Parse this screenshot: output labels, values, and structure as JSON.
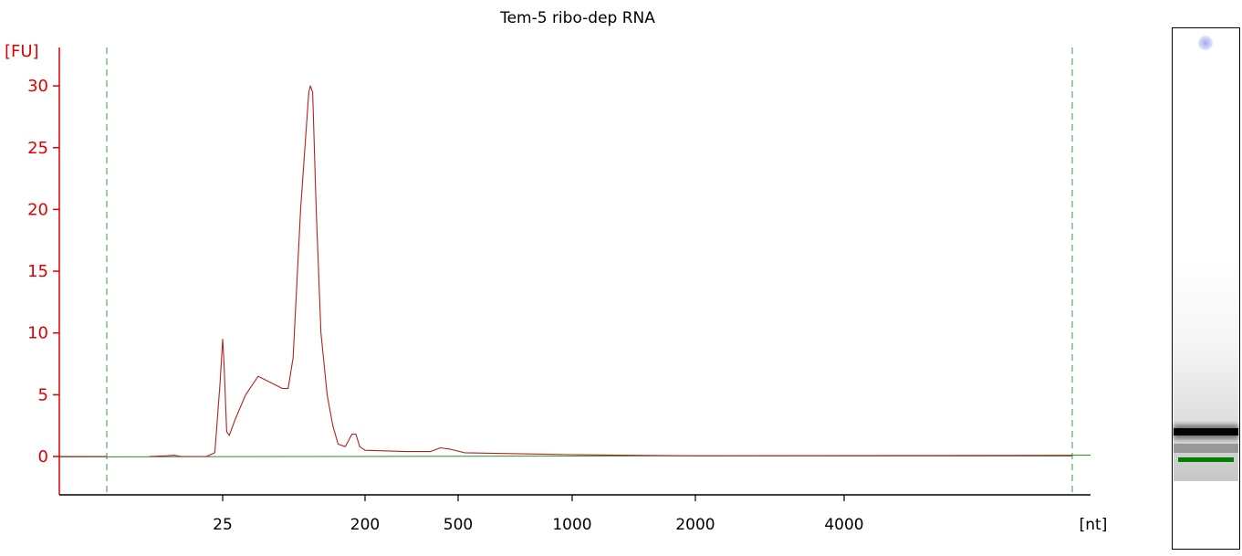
{
  "colors": {
    "trace": "#b22222",
    "baseline_trace": "#2e8b2e",
    "axis": "#e00000",
    "marker_lines": "#3a9a3a",
    "gel_marker": "#008000"
  },
  "chart_data": {
    "type": "line",
    "title": "Tem-5 ribo-dep RNA",
    "ylabel": "[FU]",
    "xlabel": "[nt]",
    "ylim": [
      -3,
      33
    ],
    "yticks": [
      0,
      5,
      10,
      15,
      20,
      25,
      30
    ],
    "xticks": [
      "25",
      "200",
      "500",
      "1000",
      "2000",
      "4000"
    ],
    "x_axis_note": "nonlinear size axis (nt), ticks labeled by size",
    "grid": false,
    "legend": "none",
    "markers": [
      "lower marker",
      "upper marker"
    ],
    "series": [
      {
        "values_by_size": [
          [
            14,
            0.0
          ],
          [
            16,
            0.05
          ],
          [
            17,
            0.1
          ],
          [
            18,
            0.0
          ],
          [
            22,
            0.0
          ],
          [
            23.5,
            0.3
          ],
          [
            24.5,
            6.0
          ],
          [
            25,
            9.5
          ],
          [
            25.5,
            7.5
          ],
          [
            26.5,
            2.0
          ],
          [
            27.5,
            1.7
          ],
          [
            30,
            3.0
          ],
          [
            35,
            5.0
          ],
          [
            42,
            6.5
          ],
          [
            50,
            6.0
          ],
          [
            60,
            5.5
          ],
          [
            65,
            5.5
          ],
          [
            70,
            8.0
          ],
          [
            78,
            20.0
          ],
          [
            88,
            29.5
          ],
          [
            90,
            30.0
          ],
          [
            93,
            29.5
          ],
          [
            98,
            20.0
          ],
          [
            105,
            10.0
          ],
          [
            115,
            5.0
          ],
          [
            125,
            2.5
          ],
          [
            135,
            1.0
          ],
          [
            150,
            0.8
          ],
          [
            165,
            1.8
          ],
          [
            175,
            1.8
          ],
          [
            185,
            0.8
          ],
          [
            200,
            0.5
          ],
          [
            300,
            0.4
          ],
          [
            380,
            0.4
          ],
          [
            420,
            0.7
          ],
          [
            460,
            0.6
          ],
          [
            520,
            0.3
          ],
          [
            800,
            0.2
          ],
          [
            1000,
            0.15
          ],
          [
            1300,
            0.1
          ],
          [
            2000,
            0.05
          ],
          [
            4000,
            0.05
          ],
          [
            6000,
            0.05
          ],
          [
            10000,
            0.05
          ]
        ]
      }
    ]
  },
  "gel": {
    "lane_label": ""
  }
}
